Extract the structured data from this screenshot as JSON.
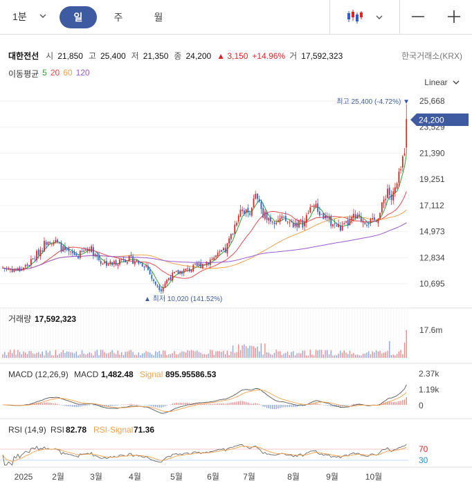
{
  "toolbar": {
    "interval": "1분",
    "tabs": [
      "일",
      "주",
      "월"
    ],
    "active_tab": "일"
  },
  "stock": {
    "name": "대한전선",
    "open_label": "시",
    "open": "21,850",
    "high_label": "고",
    "high": "25,400",
    "low_label": "저",
    "low": "21,350",
    "close_label": "종",
    "close": "24,200",
    "change": "▲ 3,150",
    "change_pct": "+14.96%",
    "volume_label": "거",
    "volume": "17,592,323",
    "exchange": "한국거래소(KRX)"
  },
  "ma": {
    "label": "이동평균",
    "periods": [
      "5",
      "20",
      "60",
      "120"
    ],
    "colors": [
      "#2ca02c",
      "#e24a4a",
      "#f0a04b",
      "#9b59d0"
    ]
  },
  "scale": "Linear",
  "price_axis": {
    "ticks": [
      25668,
      23529,
      21390,
      19251,
      17112,
      14973,
      12834,
      10695
    ],
    "tick_labels": [
      "25,668",
      "23,529",
      "21,390",
      "19,251",
      "17,112",
      "14,973",
      "12,834",
      "10,695"
    ],
    "current": "24,200",
    "high_note": "최고 25,400 (-4.72%) ▼",
    "low_note": "▲ 최저 10,020 (141.52%)"
  },
  "volume_panel": {
    "label": "거래량",
    "value": "17,592,323",
    "axis": "17.6m"
  },
  "macd_panel": {
    "label": "MACD (12,26,9)",
    "macd_label": "MACD",
    "macd_value": "1,482.48",
    "signal_label": "Signal",
    "signal_value": "895.95586.53",
    "axis": [
      "2.37k",
      "1.19k",
      "0"
    ]
  },
  "rsi_panel": {
    "label": "RSI (14,9)",
    "rsi_label": "RSI",
    "rsi_value": "82.78",
    "signal_label": "RSI-Signal",
    "signal_value": "71.36",
    "axis": [
      "70",
      "30"
    ]
  },
  "x_axis": {
    "labels": [
      "2025",
      "2월",
      "3월",
      "4월",
      "5월",
      "6월",
      "7월",
      "8월",
      "9월",
      "10월"
    ]
  },
  "colors": {
    "up": "#e02424",
    "down": "#2d5fd0",
    "accent": "#3e5aa0"
  },
  "chart_data": {
    "type": "candlestick",
    "price_ticks": [
      25668,
      23529,
      21390,
      19251,
      17112,
      14973,
      12834,
      10695
    ],
    "x_labels": [
      "2025",
      "2월",
      "3월",
      "4월",
      "5월",
      "6월",
      "7월",
      "8월",
      "9월",
      "10월"
    ],
    "last": {
      "open": 21850,
      "high": 25400,
      "low": 21350,
      "close": 24200
    },
    "period_high": 25400,
    "period_low": 10020,
    "price_path": [
      [
        0,
        12000
      ],
      [
        8,
        11800
      ],
      [
        14,
        12300
      ],
      [
        20,
        13500
      ],
      [
        24,
        14400
      ],
      [
        28,
        14100
      ],
      [
        34,
        13200
      ],
      [
        40,
        13000
      ],
      [
        46,
        13700
      ],
      [
        52,
        12500
      ],
      [
        58,
        12300
      ],
      [
        64,
        12800
      ],
      [
        70,
        12600
      ],
      [
        76,
        12200
      ],
      [
        80,
        10800
      ],
      [
        84,
        10300
      ],
      [
        88,
        11200
      ],
      [
        94,
        11700
      ],
      [
        100,
        11900
      ],
      [
        108,
        12500
      ],
      [
        114,
        13000
      ],
      [
        118,
        13400
      ],
      [
        122,
        15000
      ],
      [
        126,
        17000
      ],
      [
        130,
        16400
      ],
      [
        134,
        17800
      ],
      [
        138,
        16500
      ],
      [
        142,
        16000
      ],
      [
        148,
        15900
      ],
      [
        154,
        15600
      ],
      [
        160,
        15700
      ],
      [
        164,
        17300
      ],
      [
        168,
        16500
      ],
      [
        172,
        15900
      ],
      [
        176,
        15500
      ],
      [
        180,
        15200
      ],
      [
        186,
        16100
      ],
      [
        192,
        15900
      ],
      [
        196,
        15700
      ],
      [
        200,
        16500
      ],
      [
        204,
        18500
      ],
      [
        206,
        17600
      ],
      [
        209,
        18800
      ],
      [
        211,
        20000
      ],
      [
        213,
        21800
      ],
      [
        214,
        24200
      ]
    ]
  }
}
